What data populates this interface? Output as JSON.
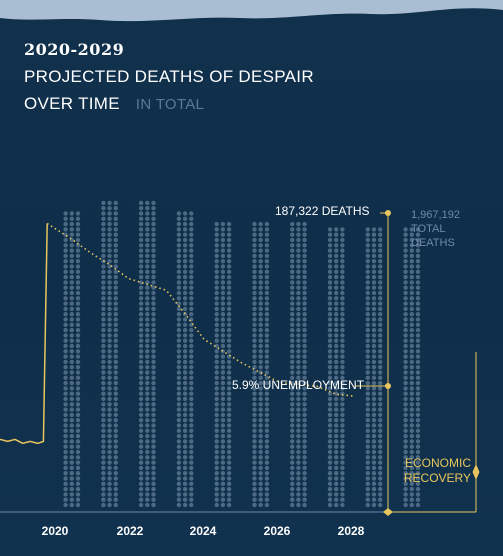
{
  "header": {
    "year_range": "2020-2029",
    "title_line1": "PROJECTED DEATHS OF DESPAIR",
    "title_line2": "OVER TIME",
    "toggle_total": "IN TOTAL"
  },
  "annotations": {
    "deaths": "187,322 DEATHS",
    "unemployment": "5.9% UNEMPLOYMENT",
    "total_value": "1,967,192",
    "total_label1": "TOTAL",
    "total_label2": "DEATHS",
    "recovery_line1": "ECONOMIC",
    "recovery_line2": "RECOVERY"
  },
  "colors": {
    "background": "#10304b",
    "dot": "#8aa3bb",
    "accent": "#e8c65d",
    "muted": "#5d7896"
  },
  "chart_data": {
    "type": "line",
    "title": "Projected Deaths of Despair Over Time",
    "x_ticks": [
      "2020",
      "2022",
      "2024",
      "2026",
      "2028"
    ],
    "x_range": [
      2018.6,
      2029.4
    ],
    "unemployment_series": {
      "name": "Unemployment rate (%)",
      "historical": [
        {
          "x": 2018.6,
          "y": 3.7
        },
        {
          "x": 2018.8,
          "y": 3.6
        },
        {
          "x": 2019.0,
          "y": 3.7
        },
        {
          "x": 2019.2,
          "y": 3.5
        },
        {
          "x": 2019.4,
          "y": 3.6
        },
        {
          "x": 2019.6,
          "y": 3.5
        },
        {
          "x": 2019.75,
          "y": 3.6
        },
        {
          "x": 2019.85,
          "y": 14.7
        }
      ],
      "projected": [
        {
          "x": 2019.85,
          "y": 14.7
        },
        {
          "x": 2020.5,
          "y": 13.9
        },
        {
          "x": 2021.0,
          "y": 13.2
        },
        {
          "x": 2021.5,
          "y": 12.6
        },
        {
          "x": 2022.0,
          "y": 11.9
        },
        {
          "x": 2022.5,
          "y": 11.6
        },
        {
          "x": 2023.0,
          "y": 11.3
        },
        {
          "x": 2023.5,
          "y": 10.1
        },
        {
          "x": 2024.0,
          "y": 8.8
        },
        {
          "x": 2025.0,
          "y": 7.6
        },
        {
          "x": 2026.0,
          "y": 6.6
        },
        {
          "x": 2027.0,
          "y": 6.4
        },
        {
          "x": 2027.5,
          "y": 6.0
        },
        {
          "x": 2028.0,
          "y": 5.9
        }
      ],
      "y_range": [
        0,
        16
      ]
    },
    "death_dot_columns": [
      {
        "year": 2020,
        "rows": 56
      },
      {
        "year": 2021,
        "rows": 58
      },
      {
        "year": 2022,
        "rows": 58
      },
      {
        "year": 2023,
        "rows": 56
      },
      {
        "year": 2024,
        "rows": 54
      },
      {
        "year": 2025,
        "rows": 54
      },
      {
        "year": 2026,
        "rows": 54
      },
      {
        "year": 2027,
        "rows": 53
      },
      {
        "year": 2028,
        "rows": 53
      },
      {
        "year": 2029,
        "rows": 53
      }
    ]
  }
}
